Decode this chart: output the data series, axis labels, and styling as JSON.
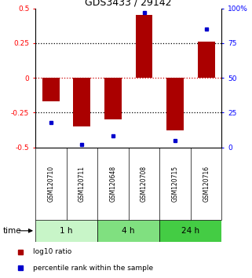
{
  "title": "GDS3433 / 29142",
  "samples": [
    "GSM120710",
    "GSM120711",
    "GSM120648",
    "GSM120708",
    "GSM120715",
    "GSM120716"
  ],
  "log10_ratio": [
    -0.17,
    -0.35,
    -0.3,
    0.45,
    -0.38,
    0.26
  ],
  "percentile_rank": [
    18,
    2,
    8,
    97,
    5,
    85
  ],
  "time_groups": [
    {
      "label": "1 h",
      "color": "#c8f5c8",
      "start": 0,
      "end": 2
    },
    {
      "label": "4 h",
      "color": "#80e080",
      "start": 2,
      "end": 4
    },
    {
      "label": "24 h",
      "color": "#44cc44",
      "start": 4,
      "end": 6
    }
  ],
  "bar_color": "#aa0000",
  "dot_color": "#0000cc",
  "ylim_left": [
    -0.5,
    0.5
  ],
  "ylim_right": [
    0,
    100
  ],
  "yticks_left": [
    -0.5,
    -0.25,
    0,
    0.25,
    0.5
  ],
  "yticks_right": [
    0,
    25,
    50,
    75,
    100
  ],
  "ytick_labels_left": [
    "-0.5",
    "-0.25",
    "0",
    "0.25",
    "0.5"
  ],
  "ytick_labels_right": [
    "0",
    "25",
    "50",
    "75",
    "100%"
  ],
  "hline_color_zero": "#cc0000",
  "hline_color_quarter": "#000000",
  "bg_color": "#ffffff",
  "sample_label_bg": "#cccccc",
  "legend_items": [
    "log10 ratio",
    "percentile rank within the sample"
  ],
  "bar_width": 0.55
}
